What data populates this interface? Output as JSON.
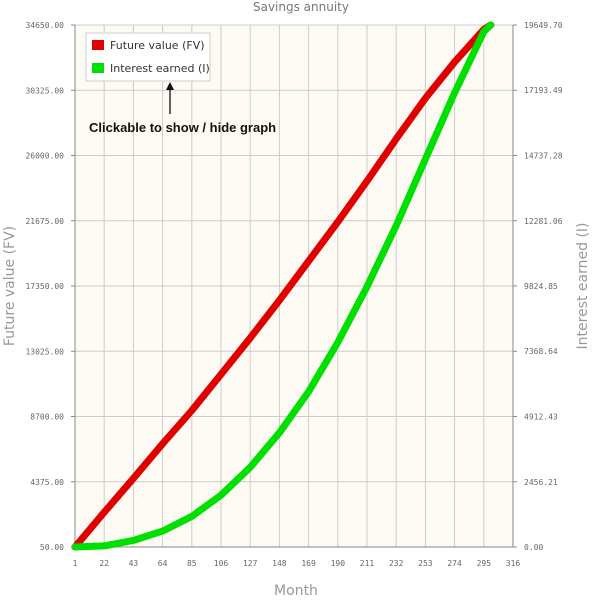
{
  "chart_data": {
    "type": "line",
    "title": "Savings annuity",
    "xlabel": "Month",
    "ylabel_left": "Future value (FV)",
    "ylabel_right": "Interest earned (I)",
    "x_ticks": [
      "1",
      "22",
      "43",
      "64",
      "85",
      "106",
      "127",
      "148",
      "169",
      "190",
      "211",
      "232",
      "253",
      "274",
      "295",
      "316"
    ],
    "y_left_ticks": [
      "50.00",
      "4375.00",
      "8700.00",
      "13025.00",
      "17350.00",
      "21675.00",
      "26000.00",
      "30325.00",
      "34650.00"
    ],
    "y_right_ticks": [
      "0.00",
      "2456.21",
      "4912.43",
      "7368.64",
      "9824.85",
      "12281.06",
      "14737.28",
      "17193.49",
      "19649.70"
    ],
    "xlim": [
      1,
      316
    ],
    "ylim_left": [
      50,
      34650
    ],
    "ylim_right": [
      0,
      19649.7
    ],
    "grid": true,
    "legend_position": "top-left",
    "colors": {
      "fv": "#e00000",
      "interest": "#00e000",
      "plot_bg": "#fdfaf3",
      "grid": "#cccccc"
    },
    "series": [
      {
        "name": "Future value (FV)",
        "axis": "left",
        "color": "#e00000",
        "x": [
          1,
          22,
          43,
          64,
          85,
          106,
          127,
          148,
          169,
          190,
          211,
          232,
          253,
          274,
          295,
          300
        ],
        "y": [
          50,
          2350,
          4600,
          6900,
          9100,
          11500,
          13900,
          16400,
          19000,
          21600,
          24300,
          27100,
          29800,
          32200,
          34350,
          34650
        ]
      },
      {
        "name": "Interest earned (I)",
        "axis": "right",
        "color": "#00e000",
        "x": [
          1,
          22,
          43,
          64,
          85,
          106,
          127,
          148,
          169,
          190,
          211,
          232,
          253,
          274,
          295,
          300
        ],
        "y": [
          0,
          40,
          250,
          600,
          1150,
          1950,
          3000,
          4300,
          5850,
          7700,
          9800,
          12100,
          14600,
          17100,
          19400,
          19649.7
        ]
      }
    ],
    "annotation": "Clickable to show / hide graph"
  }
}
